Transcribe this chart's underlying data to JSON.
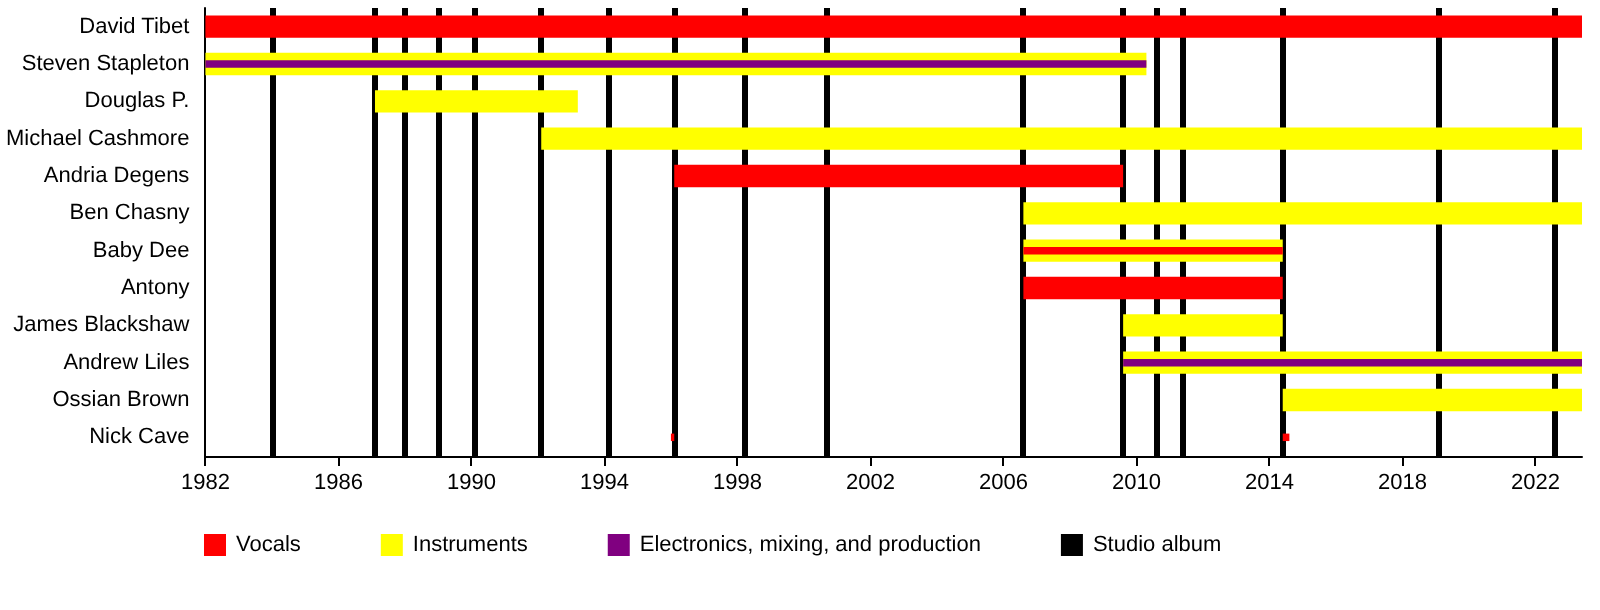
{
  "chart_data": {
    "type": "bar",
    "orientation": "horizontal",
    "categories": [
      "David Tibet",
      "Steven Stapleton",
      "Douglas P.",
      "Michael Cashmore",
      "Andria Degens",
      "Ben Chasny",
      "Baby Dee",
      "Antony",
      "James Blackshaw",
      "Andrew Liles",
      "Ossian Brown",
      "Nick Cave"
    ],
    "series": [
      {
        "name": "Vocals",
        "color": "#ff0000",
        "values": [
          41.4,
          null,
          null,
          null,
          13.5,
          null,
          7.8,
          7.8,
          null,
          null,
          null,
          0.1
        ],
        "base": [
          1982,
          null,
          null,
          null,
          1996.1,
          null,
          2006.6,
          2006.6,
          null,
          null,
          null,
          1996.0
        ]
      },
      {
        "name": "Instruments",
        "color": "#ffff00",
        "values": [
          null,
          28.3,
          6.1,
          31.3,
          null,
          16.8,
          7.8,
          null,
          4.8,
          13.8,
          9.0,
          null
        ],
        "base": [
          null,
          1982,
          1987.1,
          1992.1,
          null,
          2006.6,
          2006.6,
          null,
          2009.6,
          2009.6,
          2014.4,
          null
        ]
      },
      {
        "name": "Electronics, mixing, and production",
        "color": "#800080",
        "values": [
          null,
          28.3,
          null,
          null,
          null,
          null,
          null,
          null,
          null,
          13.8,
          null,
          null
        ],
        "base": [
          null,
          1982,
          null,
          null,
          null,
          null,
          null,
          null,
          null,
          2009.6,
          null,
          null
        ]
      },
      {
        "color": "#ff0000",
        "values": [
          null,
          null,
          null,
          null,
          null,
          null,
          null,
          null,
          null,
          null,
          null,
          0.2
        ],
        "base": [
          null,
          null,
          null,
          null,
          null,
          null,
          null,
          null,
          null,
          null,
          null,
          2014.4
        ]
      }
    ],
    "xlim": [
      1982,
      2023.4
    ],
    "xticks": [
      1982,
      1986,
      1990,
      1994,
      1998,
      2002,
      2006,
      2010,
      2014,
      2018,
      2022
    ],
    "ref_lines": [
      {
        "axis": "x",
        "value": 1984.0,
        "label": "Studio album",
        "color": "#000000"
      },
      {
        "axis": "x",
        "value": 1987.1,
        "label": null,
        "color": "#000000"
      },
      {
        "axis": "x",
        "value": 1988.0,
        "label": null,
        "color": "#000000"
      },
      {
        "axis": "x",
        "value": 1989.0,
        "label": null,
        "color": "#000000"
      },
      {
        "axis": "x",
        "value": 1990.1,
        "label": null,
        "color": "#000000"
      },
      {
        "axis": "x",
        "value": 1992.1,
        "label": null,
        "color": "#000000"
      },
      {
        "axis": "x",
        "value": 1994.1,
        "label": null,
        "color": "#000000"
      },
      {
        "axis": "x",
        "value": 1996.1,
        "label": null,
        "color": "#000000"
      },
      {
        "axis": "x",
        "value": 1998.2,
        "label": null,
        "color": "#000000"
      },
      {
        "axis": "x",
        "value": 2000.7,
        "label": null,
        "color": "#000000"
      },
      {
        "axis": "x",
        "value": 2006.6,
        "label": null,
        "color": "#000000"
      },
      {
        "axis": "x",
        "value": 2009.6,
        "label": null,
        "color": "#000000"
      },
      {
        "axis": "x",
        "value": 2010.6,
        "label": null,
        "color": "#000000"
      },
      {
        "axis": "x",
        "value": 2011.4,
        "label": null,
        "color": "#000000"
      },
      {
        "axis": "x",
        "value": 2014.4,
        "label": null,
        "color": "#000000"
      },
      {
        "axis": "x",
        "value": 2019.1,
        "label": null,
        "color": "#000000"
      },
      {
        "axis": "x",
        "value": 2022.6,
        "label": null,
        "color": "#000000"
      }
    ],
    "legend": "bottom"
  }
}
